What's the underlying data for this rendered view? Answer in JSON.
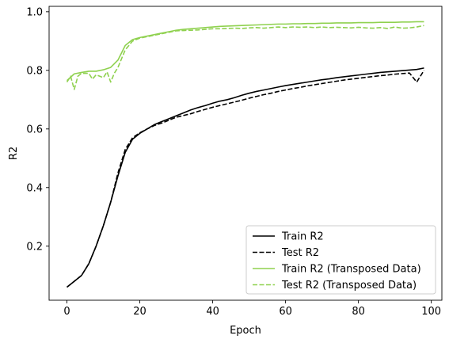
{
  "chart_data": {
    "type": "line",
    "xlabel": "Epoch",
    "ylabel": "R2",
    "xlim": [
      -4.9,
      102.9
    ],
    "ylim": [
      0.0155,
      1.0185
    ],
    "xticks": [
      0,
      20,
      40,
      60,
      80,
      100
    ],
    "yticks": [
      0.2,
      0.4,
      0.6,
      0.8,
      1.0
    ],
    "xtick_labels": [
      "0",
      "20",
      "40",
      "60",
      "80",
      "100"
    ],
    "ytick_labels": [
      "0.2",
      "0.4",
      "0.6",
      "0.8",
      "1.0"
    ],
    "legend_position": "lower-right",
    "series": [
      {
        "name": "Train R2",
        "color": "#000000",
        "style": "solid",
        "x": [
          0,
          2,
          4,
          6,
          8,
          10,
          12,
          14,
          16,
          18,
          20,
          22,
          24,
          26,
          28,
          30,
          32,
          34,
          36,
          38,
          40,
          42,
          44,
          46,
          48,
          50,
          52,
          54,
          56,
          58,
          60,
          62,
          64,
          66,
          68,
          70,
          72,
          74,
          76,
          78,
          80,
          82,
          84,
          86,
          88,
          90,
          92,
          94,
          96,
          98
        ],
        "y": [
          0.06,
          0.08,
          0.1,
          0.14,
          0.2,
          0.27,
          0.35,
          0.44,
          0.52,
          0.565,
          0.585,
          0.6,
          0.615,
          0.625,
          0.635,
          0.645,
          0.655,
          0.665,
          0.673,
          0.68,
          0.688,
          0.695,
          0.7,
          0.707,
          0.715,
          0.722,
          0.728,
          0.733,
          0.738,
          0.743,
          0.748,
          0.752,
          0.756,
          0.76,
          0.764,
          0.768,
          0.771,
          0.775,
          0.778,
          0.781,
          0.784,
          0.787,
          0.79,
          0.793,
          0.795,
          0.797,
          0.799,
          0.801,
          0.803,
          0.808
        ]
      },
      {
        "name": "Test R2",
        "color": "#000000",
        "style": "dashed",
        "x": [
          0,
          2,
          4,
          6,
          8,
          10,
          12,
          14,
          16,
          18,
          20,
          22,
          24,
          26,
          28,
          30,
          32,
          34,
          36,
          38,
          40,
          42,
          44,
          46,
          48,
          50,
          52,
          54,
          56,
          58,
          60,
          62,
          64,
          66,
          68,
          70,
          72,
          74,
          76,
          78,
          80,
          82,
          84,
          86,
          88,
          90,
          92,
          94,
          96,
          98
        ],
        "y": [
          0.06,
          0.08,
          0.1,
          0.14,
          0.2,
          0.27,
          0.35,
          0.45,
          0.53,
          0.57,
          0.587,
          0.6,
          0.612,
          0.62,
          0.63,
          0.64,
          0.646,
          0.652,
          0.66,
          0.667,
          0.674,
          0.68,
          0.686,
          0.692,
          0.698,
          0.705,
          0.711,
          0.717,
          0.722,
          0.728,
          0.733,
          0.738,
          0.742,
          0.747,
          0.751,
          0.755,
          0.759,
          0.763,
          0.767,
          0.77,
          0.773,
          0.776,
          0.779,
          0.782,
          0.784,
          0.787,
          0.789,
          0.791,
          0.76,
          0.8
        ]
      },
      {
        "name": "Train R2 (Transposed Data)",
        "color": "#8fd14f",
        "style": "solid",
        "x": [
          0,
          2,
          4,
          6,
          8,
          10,
          12,
          14,
          16,
          18,
          20,
          22,
          24,
          26,
          28,
          30,
          32,
          34,
          36,
          38,
          40,
          42,
          44,
          46,
          48,
          50,
          52,
          54,
          56,
          58,
          60,
          62,
          64,
          66,
          68,
          70,
          72,
          74,
          76,
          78,
          80,
          82,
          84,
          86,
          88,
          90,
          92,
          94,
          96,
          98
        ],
        "y": [
          0.765,
          0.788,
          0.793,
          0.797,
          0.797,
          0.802,
          0.81,
          0.835,
          0.885,
          0.905,
          0.912,
          0.917,
          0.922,
          0.927,
          0.932,
          0.937,
          0.94,
          0.942,
          0.944,
          0.946,
          0.948,
          0.95,
          0.951,
          0.952,
          0.953,
          0.954,
          0.955,
          0.956,
          0.957,
          0.958,
          0.958,
          0.959,
          0.959,
          0.96,
          0.96,
          0.961,
          0.961,
          0.962,
          0.962,
          0.962,
          0.963,
          0.963,
          0.963,
          0.964,
          0.964,
          0.964,
          0.965,
          0.965,
          0.966,
          0.966
        ]
      },
      {
        "name": "Test R2 (Transposed Data)",
        "color": "#8fd14f",
        "style": "dashed",
        "x": [
          0,
          1,
          2,
          3,
          4,
          6,
          7,
          8,
          10,
          11,
          12,
          13,
          14,
          16,
          18,
          20,
          22,
          24,
          26,
          28,
          30,
          32,
          34,
          36,
          38,
          40,
          42,
          44,
          46,
          48,
          50,
          52,
          54,
          56,
          58,
          60,
          62,
          64,
          66,
          68,
          70,
          72,
          74,
          76,
          78,
          80,
          82,
          84,
          86,
          88,
          90,
          92,
          94,
          96,
          98
        ],
        "y": [
          0.76,
          0.78,
          0.735,
          0.78,
          0.79,
          0.79,
          0.77,
          0.785,
          0.775,
          0.795,
          0.76,
          0.79,
          0.81,
          0.87,
          0.9,
          0.91,
          0.915,
          0.92,
          0.925,
          0.93,
          0.935,
          0.936,
          0.937,
          0.938,
          0.94,
          0.942,
          0.942,
          0.943,
          0.944,
          0.943,
          0.945,
          0.946,
          0.944,
          0.946,
          0.948,
          0.946,
          0.948,
          0.947,
          0.948,
          0.946,
          0.948,
          0.946,
          0.947,
          0.946,
          0.945,
          0.947,
          0.945,
          0.944,
          0.946,
          0.943,
          0.948,
          0.944,
          0.945,
          0.948,
          0.953
        ]
      }
    ]
  }
}
